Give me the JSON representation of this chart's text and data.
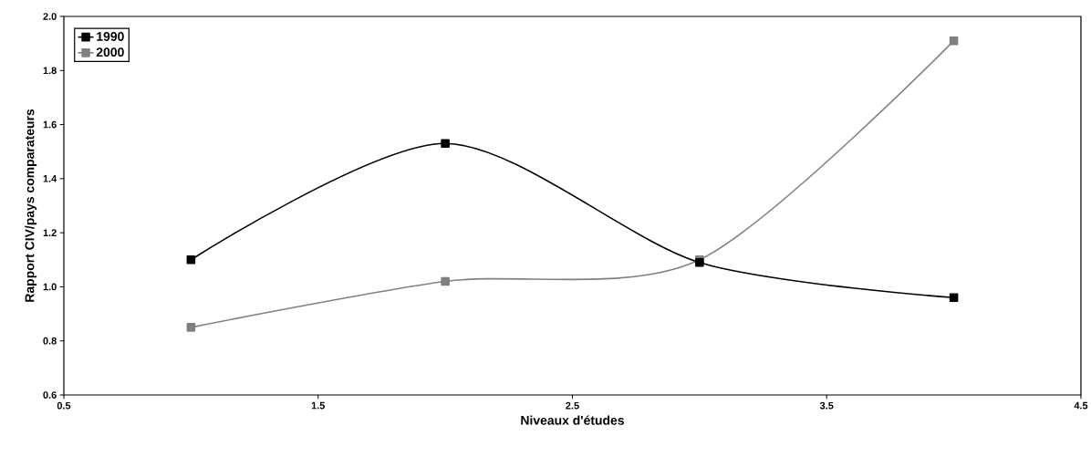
{
  "chart_data": {
    "type": "line",
    "xlabel": "Niveaux d'études",
    "ylabel": "Rapport CIV/pays comparateurs",
    "xlim": [
      0.5,
      4.5
    ],
    "xticks": [
      0.5,
      1.5,
      2.5,
      3.5,
      4.5
    ],
    "ylim": [
      0.6,
      2.0
    ],
    "yticks": [
      0.6,
      0.8,
      {
        "value": 1.0,
        "label": "1.0"
      },
      1.2,
      1.4,
      1.6,
      1.8,
      {
        "value": 2.0,
        "label": "2.0"
      }
    ],
    "x": [
      1,
      2,
      3,
      4
    ],
    "series": [
      {
        "name": "1990",
        "color": "#000000",
        "values": [
          1.1,
          1.53,
          1.09,
          0.96
        ]
      },
      {
        "name": "2000",
        "color": "#808080",
        "values": [
          0.85,
          1.02,
          1.1,
          1.91
        ]
      }
    ],
    "marker": "square",
    "legend": "top left",
    "grid": false,
    "line_style": "solid"
  }
}
